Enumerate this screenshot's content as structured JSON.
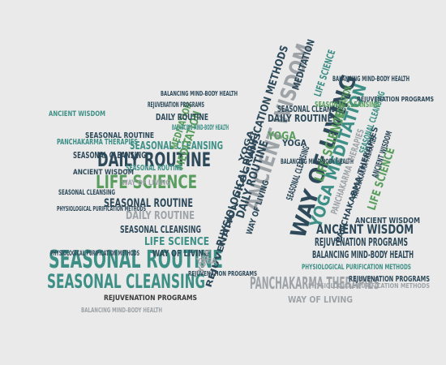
{
  "colors": {
    "background": "#eaeaea",
    "navy": "#2e4a5a",
    "teal": "#3e8f86",
    "green": "#5a9e5f",
    "grey": "#9ea3a8",
    "dark": "#3a3a3a"
  },
  "words": [
    {
      "text": "SEASONAL ROUTINE",
      "color": "teal"
    },
    {
      "text": "SEASONAL CLEANSING",
      "color": "teal"
    },
    {
      "text": "DAILY ROUTINE",
      "color": "navy"
    },
    {
      "text": "LIFE SCIENCE",
      "color": "green"
    },
    {
      "text": "SEASONAL ROUTINE",
      "color": "navy"
    },
    {
      "text": "DAILY ROUTINE",
      "color": "grey"
    },
    {
      "text": "SEASONAL CLEANSING",
      "color": "navy"
    },
    {
      "text": "LIFE SCIENCE",
      "color": "teal"
    },
    {
      "text": "WAY OF LIVING",
      "color": "navy"
    },
    {
      "text": "PHYSIOLOGICAL PURIFICATION METHODS",
      "color": "navy"
    },
    {
      "text": "SEASONAL CLEANSING",
      "color": "teal"
    },
    {
      "text": "REJUVENATION PROGRAMS",
      "color": "dark"
    },
    {
      "text": "BALANCING MIND-BODY HEALTH",
      "color": "grey"
    },
    {
      "text": "ANCIENT WISDOM",
      "color": "grey"
    },
    {
      "text": "PHYSIOLOGICAL PURIFICATION METHODS",
      "color": "navy"
    },
    {
      "text": "REJUVENATION PROGRAMS",
      "color": "navy"
    },
    {
      "text": "MEDITATION",
      "color": "green"
    },
    {
      "text": "WAY OF LIVING",
      "color": "navy"
    },
    {
      "text": "YOGA MEDITATION",
      "color": "teal"
    },
    {
      "text": "LIFE SCIENCE",
      "color": "green"
    },
    {
      "text": "PANCHAKARMA THERAPIES",
      "color": "navy"
    },
    {
      "text": "SEASONAL CLEANSING",
      "color": "teal"
    },
    {
      "text": "DAILY ROUTINE",
      "color": "navy"
    },
    {
      "text": "YOGA",
      "color": "green"
    },
    {
      "text": "ANCIENT WISDOM",
      "color": "navy"
    },
    {
      "text": "REJUVENATION PROGRAMS",
      "color": "navy"
    },
    {
      "text": "BALANCING MIND-BODY HEALTH",
      "color": "navy"
    },
    {
      "text": "PHYSIOLOGICAL PURIFICATION METHODS",
      "color": "teal"
    },
    {
      "text": "PANCHAKARMA THERAPIES",
      "color": "grey"
    },
    {
      "text": "WAY OF LIVING",
      "color": "grey"
    },
    {
      "text": "REJUVENATION PROGRAMS",
      "color": "navy"
    },
    {
      "text": "SEASONAL ROUTINE",
      "color": "teal"
    },
    {
      "text": "PANCHAKARMA THERAPIES",
      "color": "teal"
    },
    {
      "text": "ANCIENT WISDOM",
      "color": "teal"
    },
    {
      "text": "DAILY ROUTINE",
      "color": "navy"
    },
    {
      "text": "MEDITATION",
      "color": "green"
    },
    {
      "text": "LIFE SCIENCE",
      "color": "teal"
    },
    {
      "text": "YOGA",
      "color": "grey"
    },
    {
      "text": "WAY OF LIVING",
      "color": "navy"
    },
    {
      "text": "PANCHAKARMA THERAPIES",
      "color": "navy"
    },
    {
      "text": "LIFE SCIENCE",
      "color": "green"
    },
    {
      "text": "YOGA",
      "color": "navy"
    },
    {
      "text": "SEASONAL CLEANSING",
      "color": "navy"
    },
    {
      "text": "BALANCING MIND-BODY HEALTH",
      "color": "navy"
    },
    {
      "text": "MEDITATION",
      "color": "navy"
    },
    {
      "text": "SEASONAL CLEANSING",
      "color": "navy"
    },
    {
      "text": "ANCIENT WISDOM",
      "color": "navy"
    },
    {
      "text": "REJUVENATION PROGRAMS",
      "color": "navy"
    },
    {
      "text": "DAILY ROUTINE",
      "color": "navy"
    },
    {
      "text": "BALANCING MIND-BODY HEALTH",
      "color": "teal"
    },
    {
      "text": "SEASONAL ROUTINE",
      "color": "navy"
    },
    {
      "text": "SEASONAL CLEANSING",
      "color": "navy"
    },
    {
      "text": "PHYSIOLOGICAL PURIFICATION METHODS",
      "color": "navy"
    },
    {
      "text": "WAY OF LIVING",
      "color": "grey"
    },
    {
      "text": "PHYSIOLOGICAL PURIFICATION METHODS",
      "color": "grey"
    },
    {
      "text": "SEASONAL CLEANSING",
      "color": "green"
    },
    {
      "text": "ANCIENT WISDOM",
      "color": "navy"
    },
    {
      "text": "MEDITATION",
      "color": "green"
    },
    {
      "text": "SEASONAL CLEANSING",
      "color": "navy"
    },
    {
      "text": "PANCHAKARMA THERAPIES",
      "color": "grey"
    },
    {
      "text": "ANCIENT WISDOM",
      "color": "navy"
    },
    {
      "text": "BALANCING MIND-BODY HEALTH",
      "color": "navy"
    },
    {
      "text": "REJUVENATION PROGRAMS",
      "color": "navy"
    },
    {
      "text": "BALANCING MIND-BODY HEALTH",
      "color": "navy"
    },
    {
      "text": "YOGA",
      "color": "grey"
    },
    {
      "text": "REJUVENATION PROGRAMS",
      "color": "navy"
    },
    {
      "text": "YOGA",
      "color": "navy"
    }
  ]
}
